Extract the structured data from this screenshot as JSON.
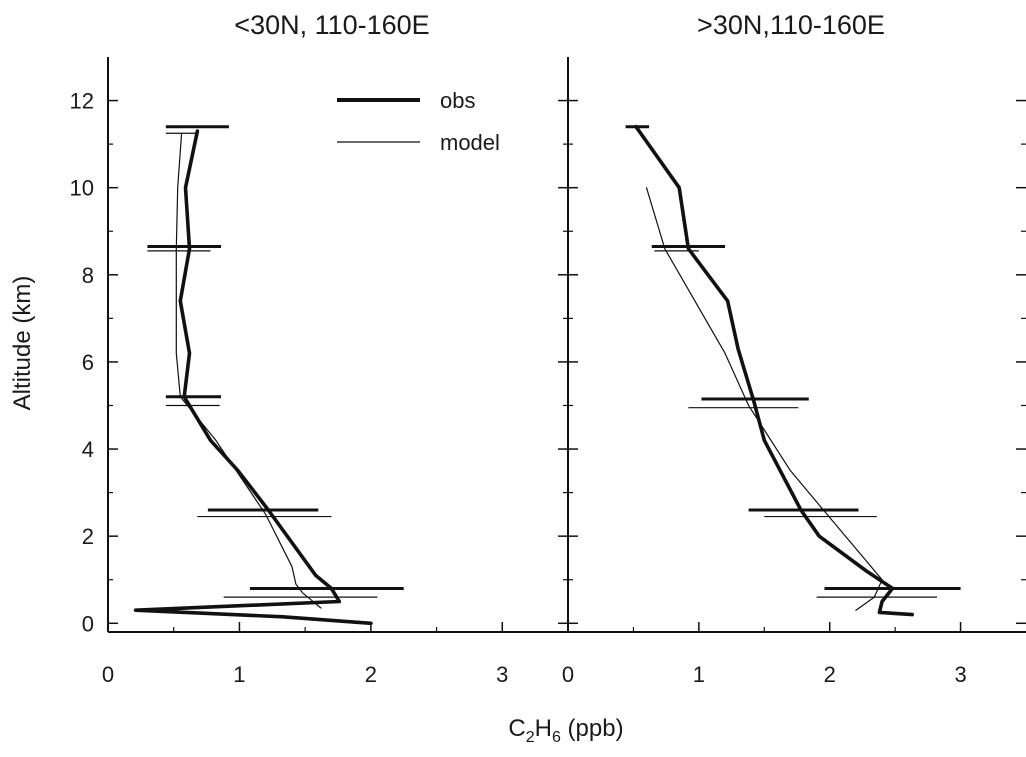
{
  "chart_data": {
    "type": "line",
    "xlabel": {
      "prefix": "C",
      "sub1": "2",
      "mid": "H",
      "sub2": "6",
      "suffix": " (ppb)"
    },
    "ylabel": "Altitude (km)",
    "legend": {
      "position": "top-right of left panel",
      "entries": [
        {
          "label": "obs",
          "style": "thick"
        },
        {
          "label": "model",
          "style": "thin"
        }
      ]
    },
    "grid": false,
    "colors": {
      "line": "#111111",
      "axis": "#111111"
    },
    "panels": [
      {
        "title": "<30N, 110-160E",
        "xlim": [
          0,
          3.5
        ],
        "ylim": [
          -0.2,
          13
        ],
        "xticks": [
          "0",
          "1",
          "2",
          "3"
        ],
        "yticks": [
          "0",
          "2",
          "4",
          "6",
          "8",
          "10",
          "12"
        ],
        "series": [
          {
            "name": "obs",
            "x": [
              2.0,
              1.33,
              0.21,
              1.76,
              1.7,
              1.58,
              1.22,
              0.99,
              0.78,
              0.58,
              0.62,
              0.55,
              0.62,
              0.59,
              0.68
            ],
            "y": [
              0.0,
              0.15,
              0.3,
              0.5,
              0.8,
              1.1,
              2.6,
              3.5,
              4.2,
              5.2,
              6.2,
              7.4,
              8.6,
              10.0,
              11.3
            ]
          },
          {
            "name": "model",
            "x": [
              1.62,
              1.48,
              1.43,
              1.4,
              1.2,
              0.82,
              0.55,
              0.52,
              0.52,
              0.53,
              0.56
            ],
            "y": [
              0.35,
              0.7,
              0.9,
              1.3,
              2.5,
              4.2,
              5.2,
              6.2,
              8.6,
              10.0,
              11.25
            ]
          }
        ],
        "error_bars": [
          {
            "series": "obs",
            "y": 11.4,
            "x_low": 0.44,
            "x_high": 0.92
          },
          {
            "series": "obs",
            "y": 8.65,
            "x_low": 0.3,
            "x_high": 0.86
          },
          {
            "series": "obs",
            "y": 5.2,
            "x_low": 0.44,
            "x_high": 0.86
          },
          {
            "series": "obs",
            "y": 2.6,
            "x_low": 0.76,
            "x_high": 1.6
          },
          {
            "series": "obs",
            "y": 0.8,
            "x_low": 1.08,
            "x_high": 2.25
          },
          {
            "series": "model",
            "y": 11.25,
            "x_low": 0.44,
            "x_high": 0.68
          },
          {
            "series": "model",
            "y": 8.55,
            "x_low": 0.3,
            "x_high": 0.78
          },
          {
            "series": "model",
            "y": 5.0,
            "x_low": 0.44,
            "x_high": 0.85
          },
          {
            "series": "model",
            "y": 2.45,
            "x_low": 0.68,
            "x_high": 1.7
          },
          {
            "series": "model",
            "y": 0.6,
            "x_low": 0.88,
            "x_high": 2.05
          }
        ]
      },
      {
        "title": ">30N,110-160E",
        "xlim": [
          0,
          3.5
        ],
        "ylim": [
          -0.2,
          13
        ],
        "xticks": [
          "0",
          "1",
          "2",
          "3"
        ],
        "yticks": [
          "0",
          "2",
          "4",
          "6",
          "8",
          "10",
          "12"
        ],
        "series": [
          {
            "name": "obs",
            "x": [
              2.63,
              2.38,
              2.4,
              2.48,
              2.28,
              1.92,
              1.78,
              1.5,
              1.42,
              1.3,
              1.22,
              0.92,
              0.85,
              0.52
            ],
            "y": [
              0.2,
              0.25,
              0.5,
              0.8,
              1.2,
              2.0,
              2.6,
              4.2,
              5.1,
              6.3,
              7.4,
              8.6,
              10.0,
              11.4
            ]
          },
          {
            "name": "model",
            "x": [
              2.2,
              2.34,
              2.4,
              1.98,
              1.7,
              1.38,
              1.2,
              0.74,
              0.6
            ],
            "y": [
              0.3,
              0.6,
              1.0,
              2.5,
              3.5,
              5.0,
              6.2,
              8.6,
              10.0
            ]
          }
        ],
        "error_bars": [
          {
            "series": "obs",
            "y": 11.4,
            "x_low": 0.44,
            "x_high": 0.62
          },
          {
            "series": "obs",
            "y": 8.65,
            "x_low": 0.64,
            "x_high": 1.2
          },
          {
            "series": "obs",
            "y": 5.15,
            "x_low": 1.02,
            "x_high": 1.84
          },
          {
            "series": "obs",
            "y": 2.6,
            "x_low": 1.38,
            "x_high": 2.22
          },
          {
            "series": "obs",
            "y": 0.8,
            "x_low": 1.96,
            "x_high": 3.0
          },
          {
            "series": "model",
            "y": 8.55,
            "x_low": 0.66,
            "x_high": 1.0
          },
          {
            "series": "model",
            "y": 4.95,
            "x_low": 0.92,
            "x_high": 1.76
          },
          {
            "series": "model",
            "y": 2.45,
            "x_low": 1.5,
            "x_high": 2.36
          },
          {
            "series": "model",
            "y": 0.6,
            "x_low": 1.9,
            "x_high": 2.82
          }
        ]
      }
    ]
  }
}
